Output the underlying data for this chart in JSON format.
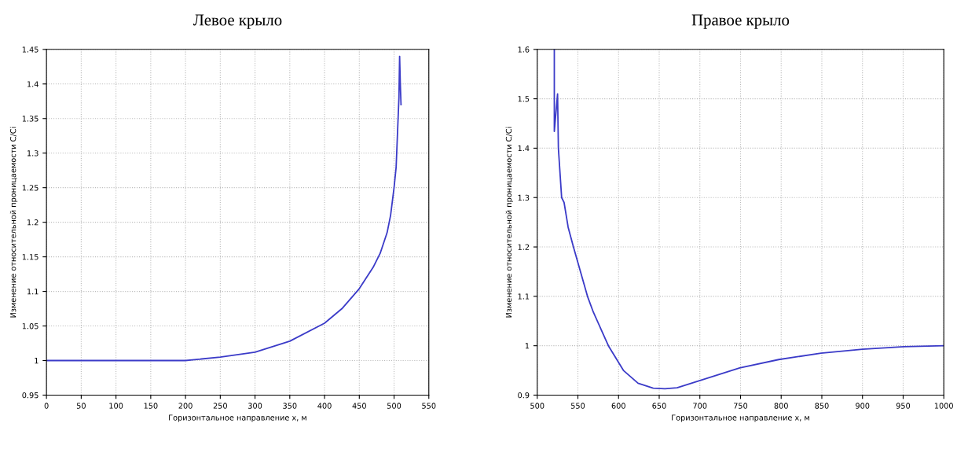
{
  "chart_data": [
    {
      "type": "line",
      "title": "Левое крыло",
      "xlabel": "Горизонтальное направление x, м",
      "ylabel": "Изменение относительной проницаемости C/Ci",
      "series": [
        {
          "color": "#3b3bc8",
          "x": [
            0,
            50,
            100,
            150,
            200,
            210,
            250,
            300,
            350,
            400,
            425,
            450,
            470,
            480,
            490,
            495,
            500,
            503,
            505,
            507,
            508,
            509,
            510
          ],
          "values": [
            1.0,
            1.0,
            1.0,
            1.0,
            1.0,
            1.001,
            1.005,
            1.012,
            1.028,
            1.054,
            1.075,
            1.104,
            1.135,
            1.155,
            1.185,
            1.21,
            1.25,
            1.28,
            1.33,
            1.38,
            1.44,
            1.4,
            1.37
          ]
        }
      ],
      "xlim": [
        0,
        550
      ],
      "xticks": [
        0,
        50,
        100,
        150,
        200,
        250,
        300,
        350,
        400,
        450,
        500,
        550
      ],
      "ylim": [
        0.95,
        1.45
      ],
      "yticks": [
        0.95,
        1,
        1.05,
        1.1,
        1.15,
        1.2,
        1.25,
        1.3,
        1.35,
        1.4,
        1.45
      ],
      "grid": true,
      "line_style": "solid"
    },
    {
      "type": "line",
      "title": "Правое крыло",
      "xlabel": "Горизонтальное направление x, м",
      "ylabel": "Изменение относительной проницаемости C/Ci",
      "series": [
        {
          "color": "#3b3bc8",
          "x": [
            521,
            521,
            525,
            526,
            530,
            533,
            538,
            544.5,
            561.8,
            569,
            587.5,
            606,
            624,
            642.6,
            657,
            672,
            701,
            749,
            797,
            849,
            900,
            951,
            1000
          ],
          "values": [
            1.6,
            1.434,
            1.51,
            1.4,
            1.3,
            1.29,
            1.24,
            1.2,
            1.1,
            1.068,
            1.0,
            0.95,
            0.924,
            0.914,
            0.913,
            0.915,
            0.93,
            0.955,
            0.972,
            0.985,
            0.993,
            0.998,
            1.0
          ]
        }
      ],
      "xlim": [
        500,
        1000
      ],
      "xticks": [
        500,
        550,
        600,
        650,
        700,
        750,
        800,
        850,
        900,
        950,
        1000
      ],
      "ylim": [
        0.9,
        1.6
      ],
      "yticks": [
        0.9,
        1,
        1.1,
        1.2,
        1.3,
        1.4,
        1.5,
        1.6
      ],
      "grid": true,
      "line_style": "solid"
    }
  ]
}
